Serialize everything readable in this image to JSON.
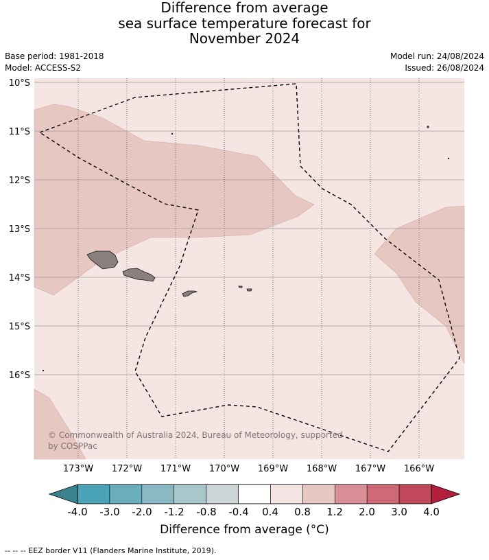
{
  "title": {
    "line1": "Difference from average",
    "line2": "sea surface temperature forecast for",
    "line3": "November 2024"
  },
  "meta": {
    "base_period": "Base period: 1981-2018",
    "model": "Model: ACCESS-S2",
    "model_run": "Model run: 24/08/2024",
    "issued": "Issued: 26/08/2024"
  },
  "map": {
    "lat_labels": [
      "10°S",
      "11°S",
      "12°S",
      "13°S",
      "14°S",
      "15°S",
      "16°S"
    ],
    "lon_labels": [
      "173°W",
      "172°W",
      "171°W",
      "170°W",
      "169°W",
      "168°W",
      "167°W",
      "166°W"
    ],
    "background_fill": "#f5e6e4",
    "anomaly_fill": "#e6c7c2",
    "land_fill": "#8a8080",
    "copyright": "© Commonwealth of Australia 2024, Bureau of Meteorology, supported by COSPPac"
  },
  "colorbar": {
    "ticks": [
      "-4.0",
      "-3.0",
      "-2.0",
      "-1.2",
      "-0.8",
      "-0.4",
      "0.4",
      "0.8",
      "1.2",
      "2.0",
      "3.0",
      "4.0"
    ],
    "colors": [
      "#4aa3b6",
      "#6aaebe",
      "#8ab9c3",
      "#a9c7cb",
      "#ccd5d5",
      "#ffffff",
      "#f5e6e4",
      "#e6c7c2",
      "#d98f96",
      "#ce6a75",
      "#c2495a"
    ],
    "low_extend_color": "#3a8290",
    "high_extend_color": "#b31f3c",
    "label": "Difference from average (°C)"
  },
  "footer": "--  --  -- EEZ border V11 (Flanders Marine Institute, 2019)."
}
